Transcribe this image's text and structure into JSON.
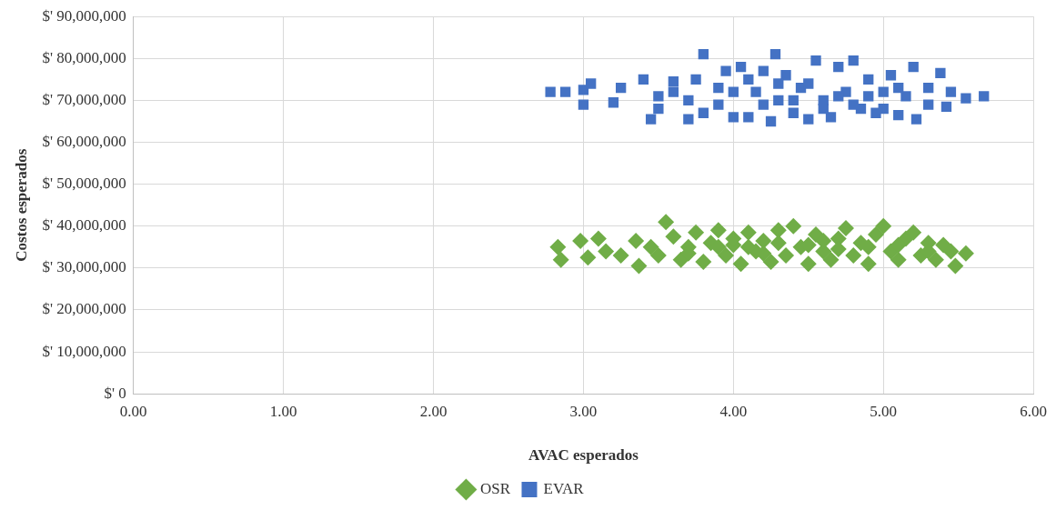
{
  "chart_data": {
    "type": "scatter",
    "xlabel": "AVAC esperados",
    "ylabel": "Costos esperados",
    "xlim": [
      0,
      6
    ],
    "ylim": [
      0,
      90000000
    ],
    "xticks": [
      {
        "value": 0,
        "label": "0.00"
      },
      {
        "value": 1,
        "label": "1.00"
      },
      {
        "value": 2,
        "label": "2.00"
      },
      {
        "value": 3,
        "label": "3.00"
      },
      {
        "value": 4,
        "label": "4.00"
      },
      {
        "value": 5,
        "label": "5.00"
      },
      {
        "value": 6,
        "label": "6.00"
      }
    ],
    "yticks": [
      {
        "value": 0,
        "label": "$' 0"
      },
      {
        "value": 10000000,
        "label": "$' 10,000,000"
      },
      {
        "value": 20000000,
        "label": "$' 20,000,000"
      },
      {
        "value": 30000000,
        "label": "$' 30,000,000"
      },
      {
        "value": 40000000,
        "label": "$' 40,000,000"
      },
      {
        "value": 50000000,
        "label": "$' 50,000,000"
      },
      {
        "value": 60000000,
        "label": "$' 60,000,000"
      },
      {
        "value": 70000000,
        "label": "$' 70,000,000"
      },
      {
        "value": 80000000,
        "label": "$' 80,000,000"
      },
      {
        "value": 90000000,
        "label": "$' 90,000,000"
      }
    ],
    "grid": true,
    "legend": "bottom",
    "series": [
      {
        "name": "OSR",
        "color": "#70ad47",
        "marker": "diamond",
        "x": [
          2.83,
          2.85,
          2.98,
          3.03,
          3.1,
          3.15,
          3.25,
          3.35,
          3.37,
          3.45,
          3.55,
          3.5,
          3.6,
          3.65,
          3.7,
          3.75,
          3.8,
          3.85,
          3.9,
          3.95,
          4.0,
          4.05,
          4.1,
          4.15,
          4.2,
          4.25,
          4.3,
          4.35,
          4.4,
          4.45,
          4.5,
          4.55,
          4.6,
          4.65,
          4.7,
          4.75,
          4.8,
          4.85,
          4.9,
          4.95,
          5.0,
          5.05,
          5.1,
          5.15,
          5.2,
          5.25,
          5.3,
          5.35,
          5.4,
          5.45,
          5.48,
          5.55,
          3.7,
          3.9,
          4.1,
          4.3,
          4.5,
          4.7,
          4.9,
          5.1,
          5.3,
          4.2,
          4.6,
          4.0
        ],
        "values": [
          35000000,
          32000000,
          36500000,
          32500000,
          37000000,
          34000000,
          33000000,
          36500000,
          30500000,
          35000000,
          41000000,
          33000000,
          37500000,
          32000000,
          35000000,
          38500000,
          31500000,
          36000000,
          39000000,
          33000000,
          35500000,
          31000000,
          38500000,
          34000000,
          36500000,
          31500000,
          39000000,
          33000000,
          40000000,
          35000000,
          31000000,
          38000000,
          34000000,
          32000000,
          37000000,
          39500000,
          33000000,
          36000000,
          31000000,
          38000000,
          40000000,
          34000000,
          32000000,
          37000000,
          38500000,
          33000000,
          36000000,
          32000000,
          35500000,
          34000000,
          30500000,
          33500000,
          33500000,
          35000000,
          35000000,
          36000000,
          35500000,
          34500000,
          35000000,
          35500000,
          34000000,
          33500000,
          36500000,
          37000000
        ]
      },
      {
        "name": "EVAR",
        "color": "#4472c4",
        "marker": "square",
        "x": [
          2.78,
          2.88,
          3.0,
          3.0,
          3.05,
          3.2,
          3.25,
          3.4,
          3.45,
          3.5,
          3.6,
          3.7,
          3.8,
          3.8,
          3.9,
          3.95,
          4.0,
          4.05,
          4.1,
          4.15,
          4.2,
          4.25,
          4.28,
          4.3,
          4.35,
          4.4,
          4.45,
          4.5,
          4.55,
          4.6,
          4.65,
          4.7,
          4.75,
          4.8,
          4.85,
          4.9,
          4.95,
          5.0,
          5.05,
          5.1,
          5.15,
          5.2,
          5.22,
          5.3,
          5.38,
          5.42,
          5.45,
          5.55,
          5.67,
          3.5,
          3.7,
          3.9,
          4.0,
          4.1,
          4.2,
          4.4,
          4.5,
          4.6,
          4.7,
          4.8,
          4.9,
          5.0,
          5.1,
          5.3,
          3.6,
          4.3,
          3.75
        ],
        "values": [
          72000000,
          72000000,
          69000000,
          72500000,
          74000000,
          69500000,
          73000000,
          75000000,
          65500000,
          71000000,
          74500000,
          65500000,
          81000000,
          67000000,
          73000000,
          77000000,
          66000000,
          78000000,
          66000000,
          72000000,
          77000000,
          65000000,
          81000000,
          70000000,
          76000000,
          67000000,
          73000000,
          65500000,
          79500000,
          70000000,
          66000000,
          78000000,
          72000000,
          79500000,
          68000000,
          75000000,
          67000000,
          72000000,
          76000000,
          66500000,
          71000000,
          78000000,
          65500000,
          73000000,
          76500000,
          68500000,
          72000000,
          70500000,
          71000000,
          68000000,
          70000000,
          69000000,
          72000000,
          75000000,
          69000000,
          70000000,
          74000000,
          68000000,
          71000000,
          69000000,
          71000000,
          68000000,
          73000000,
          69000000,
          72000000,
          74000000,
          75000000
        ]
      }
    ]
  }
}
